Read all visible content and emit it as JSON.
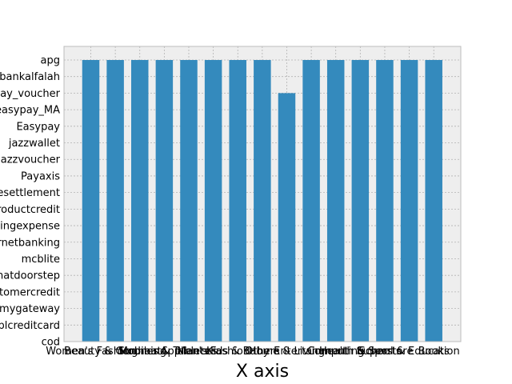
{
  "chart_data": {
    "type": "bar",
    "xlabel": "X axis",
    "ylabel": "",
    "title": "",
    "categories": [
      "Women's Fashion",
      "Beauty & Grooming",
      "Soghaat",
      "Mobiles & Tablets",
      "Appliances",
      "Men's Fashion",
      "Kids & Baby",
      "Others",
      "Home & Living",
      "Entertainment",
      "Computing",
      "Health & Sports",
      "Superstore",
      "School & Education",
      "Books"
    ],
    "x_tick_labels": [
      "Women's Fashion",
      "Beauty & Grooming",
      "Soghaat",
      "Mobiles & Tablets",
      "Appliances",
      "Men's Fashion",
      "Kids & Baby",
      "Others",
      "Home & Living",
      "Entertainment",
      "Computing",
      "Health & Sports",
      "Superstore",
      "School & Education",
      "Books"
    ],
    "y_categories": [
      "cod",
      "ublcreditcard",
      "mygateway",
      "customercredit",
      "cashatdoorstep",
      "mcblite",
      "internetbanking",
      "marketingexpense",
      "productcredit",
      "financesettlement",
      "Payaxis",
      "jazzvoucher",
      "jazzwallet",
      "Easypay",
      "easypay_MA",
      "easypay_voucher",
      "bankalfalah",
      "apg"
    ],
    "values": [
      "apg",
      "apg",
      "apg",
      "apg",
      "apg",
      "apg",
      "apg",
      "apg",
      "easypay_voucher",
      "apg",
      "apg",
      "apg",
      "apg",
      "apg",
      "apg"
    ],
    "grid": true,
    "colors": {
      "bar": "#348ABD",
      "plot_bg": "#EEEEEE",
      "grid": "#B2B2B2",
      "frame": "#BCBCBC"
    }
  }
}
